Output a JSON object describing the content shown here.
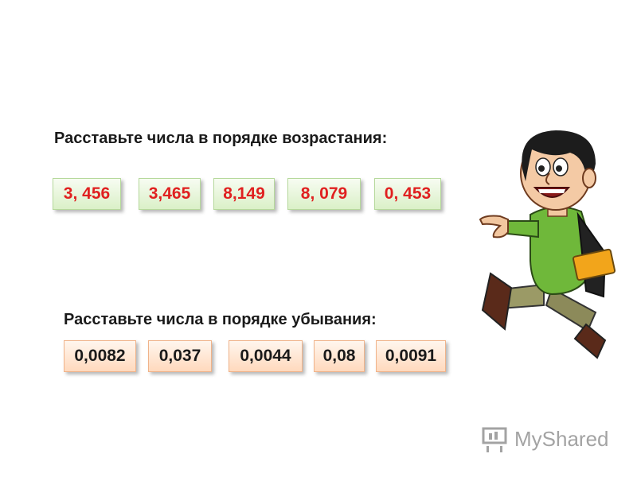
{
  "task1": {
    "heading": "Расставьте числа в порядке возрастания:",
    "numbers": [
      "3, 456",
      "3,465",
      "8,149",
      "8, 079",
      "0, 453"
    ]
  },
  "task2": {
    "heading": "Расставьте числа в порядке убывания:",
    "numbers": [
      "0,0082",
      "0,037",
      "0,0044",
      "0,08",
      "0,0091"
    ]
  },
  "branding": {
    "logo_text": "MyShared"
  },
  "icons": {
    "character": "pointing-boy-illustration-icon",
    "logo": "myshared-logo-icon"
  },
  "colors": {
    "number_red": "#e02020",
    "card_green": "#daf0c7",
    "card_orange": "#ffd9bd"
  }
}
